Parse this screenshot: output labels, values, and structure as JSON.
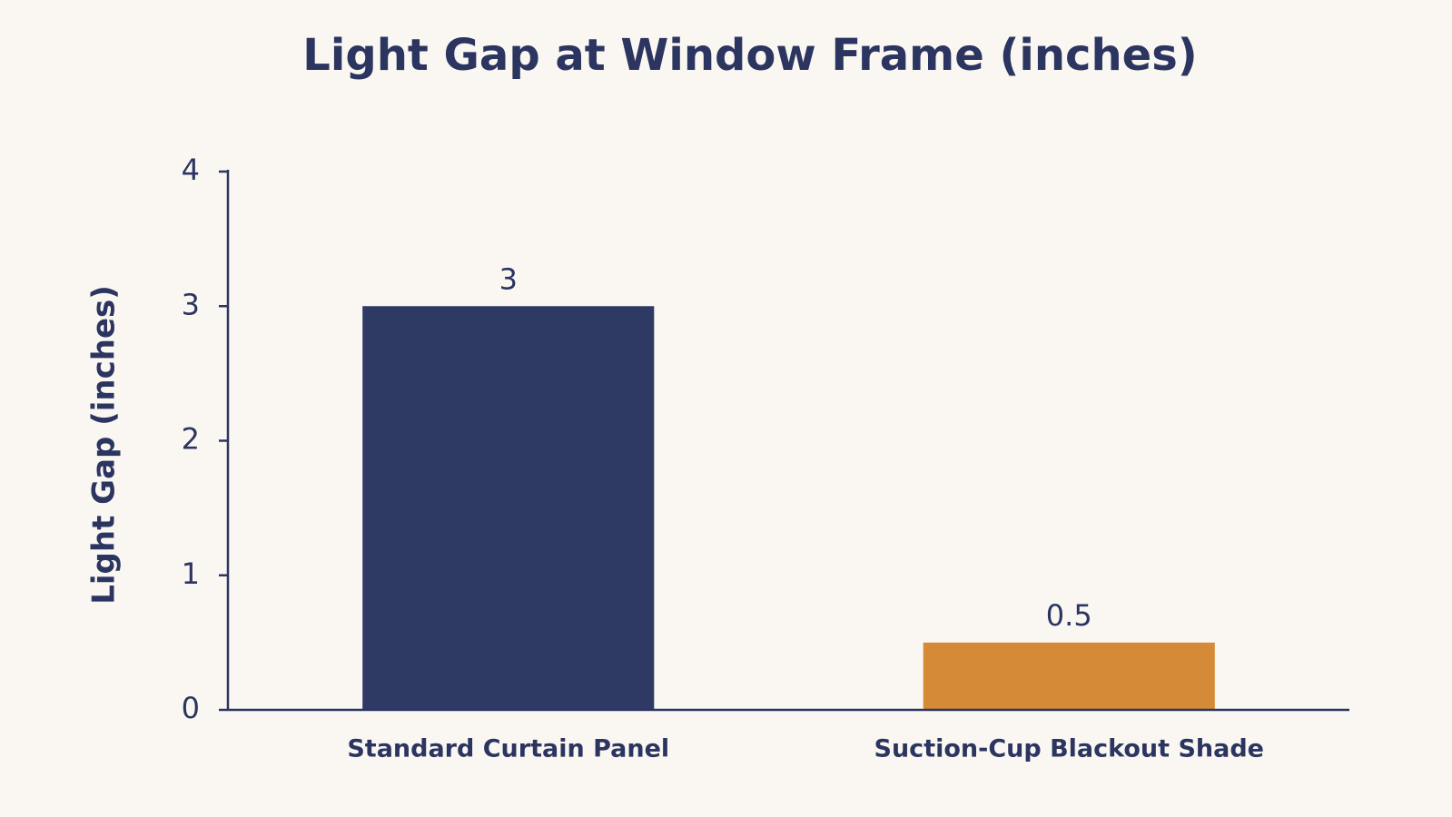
{
  "chart_data": {
    "type": "bar",
    "title": "Light Gap at Window Frame (inches)",
    "y_label": "Light Gap (inches)",
    "categories": [
      "Standard Curtain Panel",
      "Suction-Cup Blackout Shade"
    ],
    "values": [
      3,
      0.5
    ],
    "colors": [
      "#2f3a64",
      "#d48a36"
    ],
    "ylim": [
      0,
      4
    ],
    "yticks": [
      0,
      1,
      2,
      3,
      4
    ],
    "data_labels": true
  }
}
